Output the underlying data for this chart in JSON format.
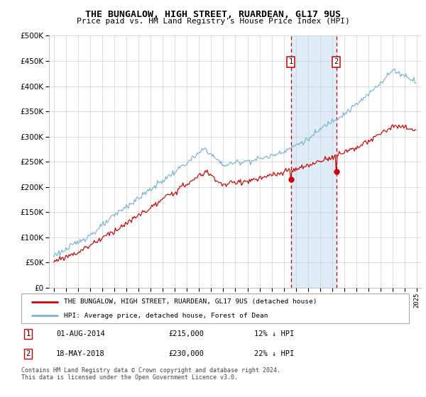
{
  "title": "THE BUNGALOW, HIGH STREET, RUARDEAN, GL17 9US",
  "subtitle": "Price paid vs. HM Land Registry's House Price Index (HPI)",
  "legend_line1": "THE BUNGALOW, HIGH STREET, RUARDEAN, GL17 9US (detached house)",
  "legend_line2": "HPI: Average price, detached house, Forest of Dean",
  "transaction1_date": "01-AUG-2014",
  "transaction1_price": "£215,000",
  "transaction1_hpi": "12% ↓ HPI",
  "transaction2_date": "18-MAY-2018",
  "transaction2_price": "£230,000",
  "transaction2_hpi": "22% ↓ HPI",
  "footer": "Contains HM Land Registry data © Crown copyright and database right 2024.\nThis data is licensed under the Open Government Licence v3.0.",
  "hpi_color": "#7ab4d4",
  "price_color": "#cc0000",
  "ylim_min": 0,
  "ylim_max": 500000
}
